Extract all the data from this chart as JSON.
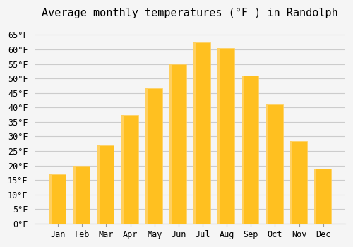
{
  "title": "Average monthly temperatures (°F ) in Randolph",
  "months": [
    "Jan",
    "Feb",
    "Mar",
    "Apr",
    "May",
    "Jun",
    "Jul",
    "Aug",
    "Sep",
    "Oct",
    "Nov",
    "Dec"
  ],
  "values": [
    17,
    20,
    27,
    37.5,
    46.5,
    55,
    62.5,
    60.5,
    51,
    41,
    28.5,
    19
  ],
  "bar_color_main": "#FFC020",
  "bar_color_edge": "#FFD060",
  "ylim": [
    0,
    68
  ],
  "yticks": [
    0,
    5,
    10,
    15,
    20,
    25,
    30,
    35,
    40,
    45,
    50,
    55,
    60,
    65
  ],
  "background_color": "#F5F5F5",
  "grid_color": "#CCCCCC",
  "title_fontsize": 11,
  "tick_fontsize": 8.5
}
